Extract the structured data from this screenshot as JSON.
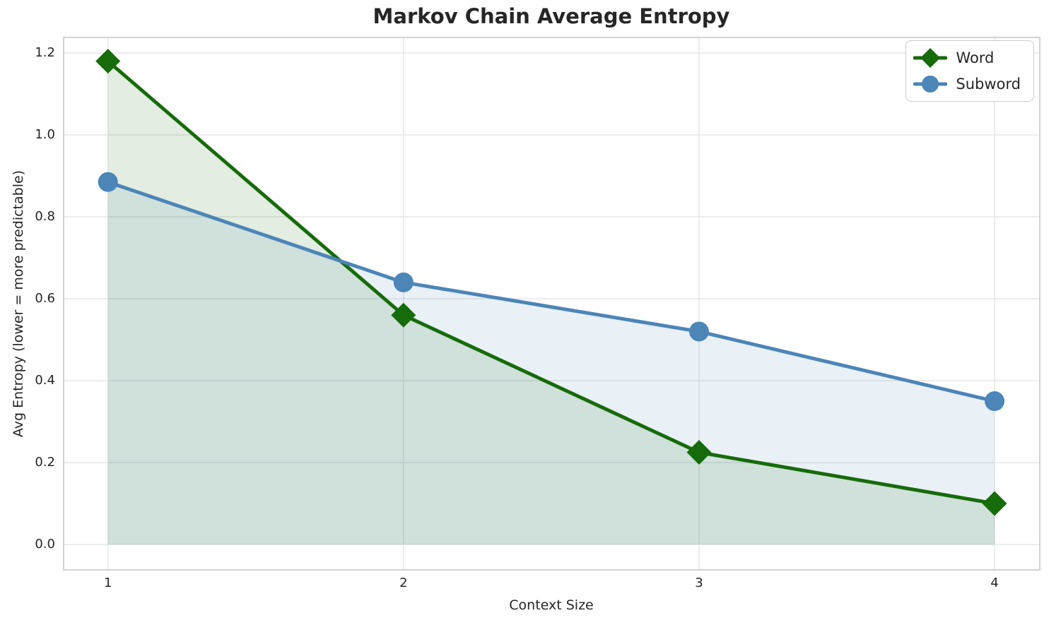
{
  "chart_data": {
    "type": "line",
    "title": "Markov Chain Average Entropy",
    "xlabel": "Context Size",
    "ylabel": "Avg Entropy (lower = more predictable)",
    "x": [
      1,
      2,
      3,
      4
    ],
    "x_ticks": [
      "1",
      "2",
      "3",
      "4"
    ],
    "y_ticks": [
      "0.0",
      "0.2",
      "0.4",
      "0.6",
      "0.8",
      "1.0",
      "1.2"
    ],
    "xlim": [
      0.85,
      4.153
    ],
    "ylim": [
      -0.062,
      1.238
    ],
    "grid": true,
    "legend_position": "upper right",
    "series": [
      {
        "name": "Word",
        "values": [
          1.18,
          0.56,
          0.225,
          0.1
        ],
        "color": "#166b0a",
        "marker": "diamond",
        "fill_to_zero": true,
        "fill_alpha": 0.12
      },
      {
        "name": "Subword",
        "values": [
          0.885,
          0.64,
          0.52,
          0.35
        ],
        "color": "#4c85b8",
        "marker": "circle",
        "fill_to_zero": true,
        "fill_alpha": 0.12
      }
    ]
  }
}
